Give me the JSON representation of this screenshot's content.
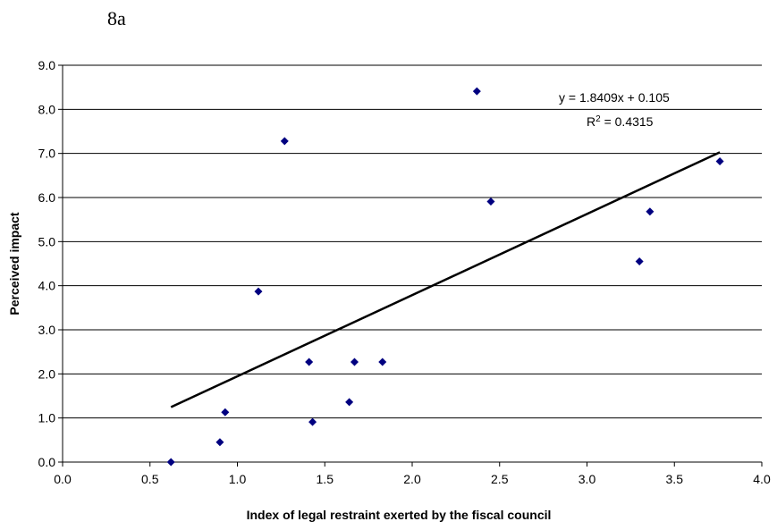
{
  "figure_label": "8a",
  "chart_data": {
    "type": "scatter",
    "xlabel": "Index of legal restraint exerted by the fiscal council",
    "ylabel": "Perceived impact",
    "xlim": [
      0.0,
      4.0
    ],
    "ylim": [
      0.0,
      9.0
    ],
    "x_ticks": [
      "0.0",
      "0.5",
      "1.0",
      "1.5",
      "2.0",
      "2.5",
      "3.0",
      "3.5",
      "4.0"
    ],
    "y_ticks": [
      "0.0",
      "1.0",
      "2.0",
      "3.0",
      "4.0",
      "5.0",
      "6.0",
      "7.0",
      "8.0",
      "9.0"
    ],
    "grid": "horizontal",
    "marker_color": "#000080",
    "points": [
      {
        "x": 0.62,
        "y": 0.0
      },
      {
        "x": 0.9,
        "y": 0.45
      },
      {
        "x": 0.93,
        "y": 1.13
      },
      {
        "x": 1.12,
        "y": 3.87
      },
      {
        "x": 1.27,
        "y": 7.28
      },
      {
        "x": 1.41,
        "y": 2.27
      },
      {
        "x": 1.43,
        "y": 0.91
      },
      {
        "x": 1.64,
        "y": 1.36
      },
      {
        "x": 1.67,
        "y": 2.27
      },
      {
        "x": 1.83,
        "y": 2.27
      },
      {
        "x": 2.37,
        "y": 8.41
      },
      {
        "x": 2.45,
        "y": 5.91
      },
      {
        "x": 3.3,
        "y": 4.55
      },
      {
        "x": 3.36,
        "y": 5.68
      },
      {
        "x": 3.76,
        "y": 6.82
      }
    ],
    "trendline": {
      "slope": 1.8409,
      "intercept": 0.105,
      "x_range": [
        0.62,
        3.76
      ],
      "equation": "y = 1.8409x + 0.105",
      "r2_prefix": "R",
      "r2_sup": "2",
      "r2_value": " = 0.4315"
    }
  }
}
